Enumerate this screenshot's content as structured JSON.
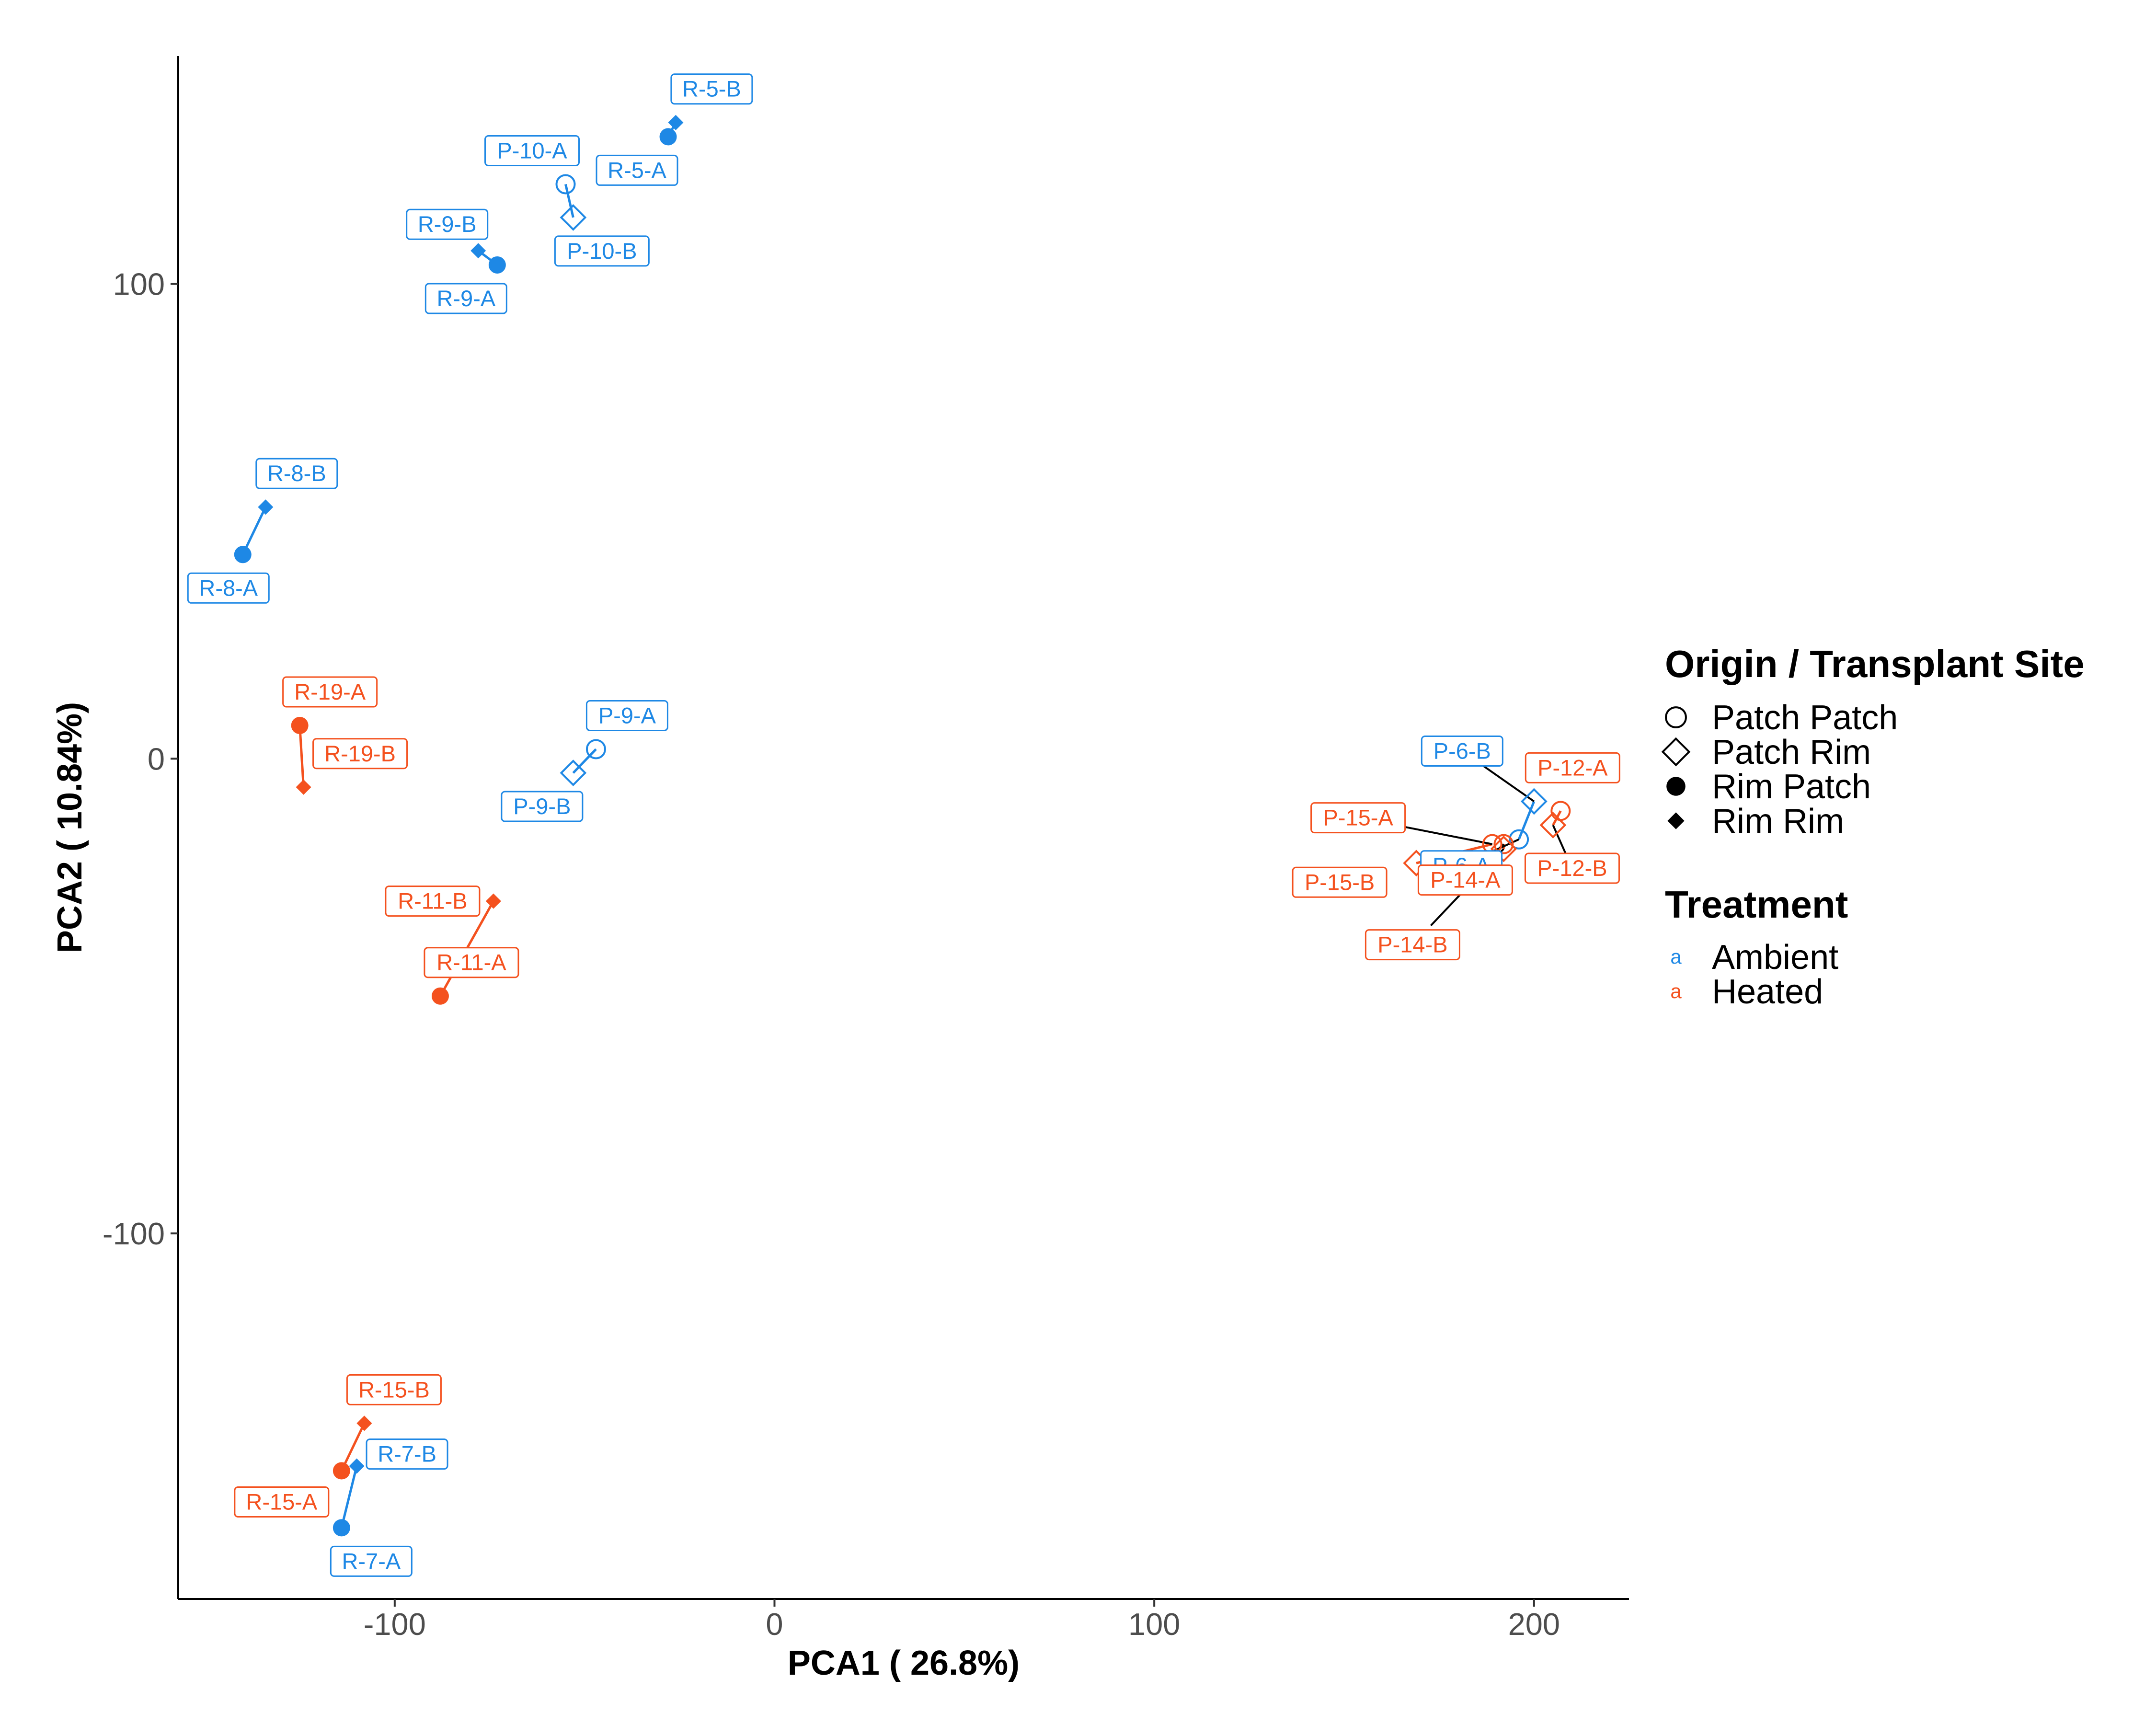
{
  "chart_data": {
    "type": "scatter",
    "xlabel": "PCA1 ( 26.8%)",
    "ylabel": "PCA2 ( 10.84%)",
    "xlim": [
      -157,
      225
    ],
    "ylim": [
      -177,
      148
    ],
    "x_ticks": [
      -100,
      0,
      100,
      200
    ],
    "y_ticks": [
      -100,
      0,
      100
    ],
    "x_tick_labels": [
      "-100",
      "0",
      "100",
      "200"
    ],
    "y_tick_labels": [
      "-100",
      "0",
      "100"
    ],
    "grid": false,
    "legend_placement": "right",
    "legends": [
      {
        "title": "Origin / Transplant Site",
        "items": [
          {
            "label": "Patch Patch",
            "shape": "open-circle"
          },
          {
            "label": "Patch Rim",
            "shape": "open-diamond"
          },
          {
            "label": "Rim Patch",
            "shape": "filled-circle"
          },
          {
            "label": "Rim Rim",
            "shape": "filled-diamond"
          }
        ]
      },
      {
        "title": "Treatment",
        "key_glyph": "a",
        "items": [
          {
            "label": "Ambient",
            "color": "#1E88E5"
          },
          {
            "label": "Heated",
            "color": "#F4511E"
          }
        ]
      }
    ],
    "colors": {
      "Ambient": "#1E88E5",
      "Heated": "#F4511E"
    },
    "points": [
      {
        "label": "R-5-A",
        "group": "Rim Patch",
        "treatment": "Ambient",
        "x": -28,
        "y": 131
      },
      {
        "label": "R-5-B",
        "group": "Rim Rim",
        "treatment": "Ambient",
        "x": -26,
        "y": 134
      },
      {
        "label": "P-10-A",
        "group": "Patch Patch",
        "treatment": "Ambient",
        "x": -55,
        "y": 121
      },
      {
        "label": "P-10-B",
        "group": "Patch Rim",
        "treatment": "Ambient",
        "x": -53,
        "y": 114
      },
      {
        "label": "R-9-A",
        "group": "Rim Patch",
        "treatment": "Ambient",
        "x": -73,
        "y": 104
      },
      {
        "label": "R-9-B",
        "group": "Rim Rim",
        "treatment": "Ambient",
        "x": -78,
        "y": 107
      },
      {
        "label": "R-8-A",
        "group": "Rim Patch",
        "treatment": "Ambient",
        "x": -140,
        "y": 43
      },
      {
        "label": "R-8-B",
        "group": "Rim Rim",
        "treatment": "Ambient",
        "x": -134,
        "y": 53
      },
      {
        "label": "R-19-A",
        "group": "Rim Patch",
        "treatment": "Heated",
        "x": -125,
        "y": 7
      },
      {
        "label": "R-19-B",
        "group": "Rim Rim",
        "treatment": "Heated",
        "x": -124,
        "y": -6
      },
      {
        "label": "P-9-A",
        "group": "Patch Patch",
        "treatment": "Ambient",
        "x": -47,
        "y": 2
      },
      {
        "label": "P-9-B",
        "group": "Patch Rim",
        "treatment": "Ambient",
        "x": -53,
        "y": -3
      },
      {
        "label": "R-11-A",
        "group": "Rim Patch",
        "treatment": "Heated",
        "x": -88,
        "y": -50
      },
      {
        "label": "R-11-B",
        "group": "Rim Rim",
        "treatment": "Heated",
        "x": -74,
        "y": -30
      },
      {
        "label": "R-15-A",
        "group": "Rim Patch",
        "treatment": "Heated",
        "x": -114,
        "y": -150
      },
      {
        "label": "R-15-B",
        "group": "Rim Rim",
        "treatment": "Heated",
        "x": -108,
        "y": -140
      },
      {
        "label": "R-7-A",
        "group": "Rim Patch",
        "treatment": "Ambient",
        "x": -114,
        "y": -162
      },
      {
        "label": "R-7-B",
        "group": "Rim Rim",
        "treatment": "Ambient",
        "x": -110,
        "y": -149
      },
      {
        "label": "P-6-A",
        "group": "Patch Patch",
        "treatment": "Ambient",
        "x": 196,
        "y": -17
      },
      {
        "label": "P-6-B",
        "group": "Patch Rim",
        "treatment": "Ambient",
        "x": 200,
        "y": -9
      },
      {
        "label": "P-12-A",
        "group": "Patch Patch",
        "treatment": "Heated",
        "x": 207,
        "y": -11
      },
      {
        "label": "P-12-B",
        "group": "Patch Rim",
        "treatment": "Heated",
        "x": 205,
        "y": -14
      },
      {
        "label": "P-15-A",
        "group": "Patch Patch",
        "treatment": "Heated",
        "x": 189,
        "y": -18
      },
      {
        "label": "P-15-B",
        "group": "Patch Rim",
        "treatment": "Heated",
        "x": 169,
        "y": -22
      },
      {
        "label": "P-14-A",
        "group": "Patch Patch",
        "treatment": "Heated",
        "x": 192,
        "y": -18
      },
      {
        "label": "P-14-B",
        "group": "Patch Rim",
        "treatment": "Heated",
        "x": 192,
        "y": -19
      }
    ],
    "pairs": [
      [
        "R-5-A",
        "R-5-B"
      ],
      [
        "P-10-A",
        "P-10-B"
      ],
      [
        "R-9-A",
        "R-9-B"
      ],
      [
        "R-8-A",
        "R-8-B"
      ],
      [
        "R-19-A",
        "R-19-B"
      ],
      [
        "P-9-A",
        "P-9-B"
      ],
      [
        "R-11-A",
        "R-11-B"
      ],
      [
        "R-15-A",
        "R-15-B"
      ],
      [
        "R-7-A",
        "R-7-B"
      ],
      [
        "P-6-A",
        "P-6-B"
      ],
      [
        "P-12-A",
        "P-12-B"
      ],
      [
        "P-15-A",
        "P-15-B"
      ],
      [
        "P-14-A",
        "P-14-B"
      ]
    ]
  }
}
